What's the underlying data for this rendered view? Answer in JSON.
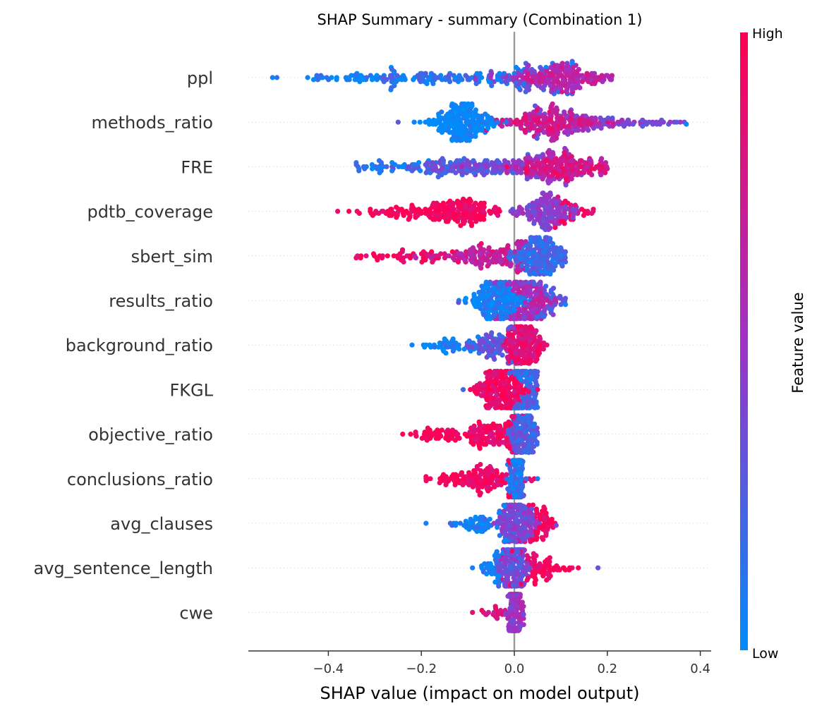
{
  "chart_data": {
    "type": "scatter",
    "title": "SHAP Summary - summary (Combination 1)",
    "xlabel": "SHAP value (impact on model output)",
    "xlim": [
      -0.57,
      0.42
    ],
    "xticks": [
      -0.4,
      -0.2,
      0.0,
      0.2,
      0.4
    ],
    "xtick_labels": [
      "−0.4",
      "−0.2",
      "0.0",
      "0.2",
      "0.4"
    ],
    "zero_line": true,
    "colorbar": {
      "label": "Feature value",
      "high_label": "High",
      "low_label": "Low",
      "low_color": "#008bfb",
      "mid_color": "#9f32c6",
      "high_color": "#ff0052"
    },
    "features": [
      {
        "name": "ppl",
        "min": -0.52,
        "max": 0.21,
        "clusters": [
          {
            "center": 0.11,
            "spread": 0.05,
            "n": 160,
            "color": 0.65
          },
          {
            "center": 0.02,
            "spread": 0.05,
            "n": 50,
            "color": 0.45
          },
          {
            "center": -0.12,
            "spread": 0.12,
            "n": 110,
            "color": 0.15
          },
          {
            "center": -0.3,
            "spread": 0.09,
            "n": 60,
            "color": 0.05
          }
        ]
      },
      {
        "name": "methods_ratio",
        "min": -0.25,
        "max": 0.37,
        "clusters": [
          {
            "center": -0.11,
            "spread": 0.035,
            "n": 200,
            "color": 0.0
          },
          {
            "center": 0.08,
            "spread": 0.05,
            "n": 160,
            "color": 0.75
          },
          {
            "center": 0.16,
            "spread": 0.07,
            "n": 80,
            "color": 0.45
          },
          {
            "center": 0.3,
            "spread": 0.05,
            "n": 15,
            "color": 0.3
          }
        ]
      },
      {
        "name": "FRE",
        "min": -0.34,
        "max": 0.2,
        "clusters": [
          {
            "center": 0.11,
            "spread": 0.045,
            "n": 160,
            "color": 0.78
          },
          {
            "center": 0.02,
            "spread": 0.06,
            "n": 80,
            "color": 0.5
          },
          {
            "center": -0.12,
            "spread": 0.07,
            "n": 120,
            "color": 0.3
          },
          {
            "center": -0.28,
            "spread": 0.05,
            "n": 35,
            "color": 0.08
          }
        ]
      },
      {
        "name": "pdtb_coverage",
        "min": -0.38,
        "max": 0.17,
        "clusters": [
          {
            "center": -0.12,
            "spread": 0.04,
            "n": 140,
            "color": 0.95
          },
          {
            "center": -0.25,
            "spread": 0.06,
            "n": 60,
            "color": 1.0
          },
          {
            "center": 0.07,
            "spread": 0.03,
            "n": 150,
            "color": 0.45
          },
          {
            "center": 0.13,
            "spread": 0.025,
            "n": 25,
            "color": 0.9
          }
        ]
      },
      {
        "name": "sbert_sim",
        "min": -0.34,
        "max": 0.11,
        "clusters": [
          {
            "center": 0.05,
            "spread": 0.03,
            "n": 200,
            "color": 0.2
          },
          {
            "center": -0.06,
            "spread": 0.05,
            "n": 120,
            "color": 0.7
          },
          {
            "center": -0.22,
            "spread": 0.06,
            "n": 50,
            "color": 0.95
          }
        ]
      },
      {
        "name": "results_ratio",
        "min": -0.12,
        "max": 0.11,
        "clusters": [
          {
            "center": -0.04,
            "spread": 0.03,
            "n": 180,
            "color": 0.05
          },
          {
            "center": 0.02,
            "spread": 0.03,
            "n": 180,
            "color": 0.6
          },
          {
            "center": 0.06,
            "spread": 0.03,
            "n": 60,
            "color": 0.3
          }
        ]
      },
      {
        "name": "background_ratio",
        "min": -0.22,
        "max": 0.07,
        "clusters": [
          {
            "center": 0.02,
            "spread": 0.02,
            "n": 200,
            "color": 0.85
          },
          {
            "center": -0.05,
            "spread": 0.03,
            "n": 80,
            "color": 0.3
          },
          {
            "center": -0.14,
            "spread": 0.04,
            "n": 40,
            "color": 0.05
          }
        ]
      },
      {
        "name": "FKGL",
        "min": -0.11,
        "max": 0.05,
        "clusters": [
          {
            "center": -0.03,
            "spread": 0.025,
            "n": 200,
            "color": 0.9
          },
          {
            "center": 0.025,
            "spread": 0.015,
            "n": 200,
            "color": 0.2
          }
        ]
      },
      {
        "name": "objective_ratio",
        "min": -0.24,
        "max": 0.05,
        "clusters": [
          {
            "center": 0.02,
            "spread": 0.015,
            "n": 200,
            "color": 0.25
          },
          {
            "center": -0.05,
            "spread": 0.03,
            "n": 100,
            "color": 0.9
          },
          {
            "center": -0.15,
            "spread": 0.04,
            "n": 60,
            "color": 1.0
          }
        ]
      },
      {
        "name": "conclusions_ratio",
        "min": -0.19,
        "max": 0.05,
        "clusters": [
          {
            "center": 0.005,
            "spread": 0.008,
            "n": 200,
            "color": 0.1
          },
          {
            "center": -0.05,
            "spread": 0.03,
            "n": 100,
            "color": 0.9
          },
          {
            "center": -0.13,
            "spread": 0.035,
            "n": 40,
            "color": 1.0
          }
        ]
      },
      {
        "name": "avg_clauses",
        "min": -0.19,
        "max": 0.09,
        "clusters": [
          {
            "center": 0.005,
            "spread": 0.018,
            "n": 220,
            "color": 0.4
          },
          {
            "center": 0.05,
            "spread": 0.02,
            "n": 60,
            "color": 0.95
          },
          {
            "center": -0.08,
            "spread": 0.045,
            "n": 60,
            "color": 0.05
          }
        ]
      },
      {
        "name": "avg_sentence_length",
        "min": -0.09,
        "max": 0.18,
        "clusters": [
          {
            "center": 0.0,
            "spread": 0.015,
            "n": 230,
            "color": 0.35
          },
          {
            "center": 0.05,
            "spread": 0.03,
            "n": 80,
            "color": 0.95
          },
          {
            "center": -0.04,
            "spread": 0.02,
            "n": 40,
            "color": 0.08
          }
        ]
      },
      {
        "name": "cwe",
        "min": -0.09,
        "max": 0.02,
        "clusters": [
          {
            "center": 0.0,
            "spread": 0.008,
            "n": 200,
            "color": 0.5
          },
          {
            "center": -0.04,
            "spread": 0.02,
            "n": 20,
            "color": 0.85
          }
        ]
      }
    ]
  }
}
